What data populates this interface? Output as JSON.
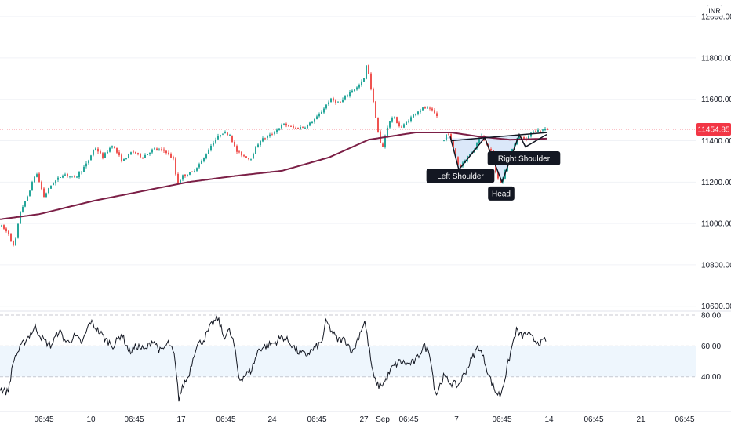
{
  "header": {
    "currency_label": "INR"
  },
  "colors": {
    "up": "#26a69a",
    "down": "#ef5350",
    "moving_average": "#7b1f46",
    "pattern_line": "#131722",
    "pattern_fill": "#cfe0f7",
    "rsi_line": "#131722",
    "rsi_band": "#eef6fd",
    "price_label_bg": "#f23645"
  },
  "chart_data": [
    {
      "type": "candlestick",
      "ylim": [
        10580,
        12080
      ],
      "ticks": [
        {
          "value": 12000,
          "label": "12000.00"
        },
        {
          "value": 11800,
          "label": "11800.00"
        },
        {
          "value": 11600,
          "label": "11600.00"
        },
        {
          "value": 11400,
          "label": "11400.00"
        },
        {
          "value": 11200,
          "label": "11200.00"
        },
        {
          "value": 11000,
          "label": "11000.00"
        },
        {
          "value": 10800,
          "label": "10800.00"
        },
        {
          "value": 10600,
          "label": "10600.00"
        }
      ],
      "last_price": {
        "value": 11454.85,
        "label": "11454.85"
      },
      "price_anchors": [
        [
          0,
          10990
        ],
        [
          10,
          10950
        ],
        [
          17,
          10880
        ],
        [
          25,
          11060
        ],
        [
          33,
          11120
        ],
        [
          45,
          11250
        ],
        [
          55,
          11130
        ],
        [
          65,
          11190
        ],
        [
          80,
          11240
        ],
        [
          95,
          11220
        ],
        [
          110,
          11290
        ],
        [
          120,
          11370
        ],
        [
          130,
          11320
        ],
        [
          142,
          11380
        ],
        [
          155,
          11300
        ],
        [
          168,
          11350
        ],
        [
          180,
          11320
        ],
        [
          195,
          11360
        ],
        [
          210,
          11350
        ],
        [
          220,
          11310
        ],
        [
          225,
          11190
        ],
        [
          232,
          11230
        ],
        [
          245,
          11250
        ],
        [
          258,
          11310
        ],
        [
          270,
          11390
        ],
        [
          282,
          11440
        ],
        [
          292,
          11430
        ],
        [
          300,
          11350
        ],
        [
          308,
          11330
        ],
        [
          318,
          11310
        ],
        [
          330,
          11400
        ],
        [
          345,
          11430
        ],
        [
          360,
          11480
        ],
        [
          375,
          11460
        ],
        [
          390,
          11470
        ],
        [
          405,
          11520
        ],
        [
          420,
          11600
        ],
        [
          432,
          11580
        ],
        [
          446,
          11640
        ],
        [
          456,
          11660
        ],
        [
          463,
          11700
        ],
        [
          467,
          11780
        ],
        [
          470,
          11700
        ],
        [
          476,
          11560
        ],
        [
          482,
          11420
        ],
        [
          486,
          11350
        ],
        [
          492,
          11460
        ],
        [
          500,
          11520
        ],
        [
          510,
          11460
        ],
        [
          520,
          11500
        ],
        [
          530,
          11540
        ],
        [
          540,
          11560
        ],
        [
          548,
          11550
        ],
        [
          556,
          11520
        ],
        [
          563,
          11380
        ],
        [
          570,
          11450
        ],
        [
          578,
          11350
        ],
        [
          584,
          11270
        ],
        [
          594,
          11320
        ],
        [
          602,
          11350
        ],
        [
          612,
          11430
        ],
        [
          620,
          11380
        ],
        [
          626,
          11340
        ],
        [
          632,
          11230
        ],
        [
          638,
          11190
        ],
        [
          645,
          11280
        ],
        [
          652,
          11360
        ],
        [
          662,
          11430
        ],
        [
          670,
          11400
        ],
        [
          676,
          11440
        ],
        [
          685,
          11450
        ],
        [
          697,
          11455
        ]
      ],
      "moving_average_anchors": [
        [
          0,
          11020
        ],
        [
          50,
          11045
        ],
        [
          120,
          11110
        ],
        [
          200,
          11170
        ],
        [
          240,
          11200
        ],
        [
          300,
          11230
        ],
        [
          360,
          11255
        ],
        [
          420,
          11320
        ],
        [
          470,
          11405
        ],
        [
          530,
          11440
        ],
        [
          575,
          11440
        ],
        [
          610,
          11420
        ],
        [
          650,
          11405
        ],
        [
          698,
          11410
        ]
      ],
      "pattern": {
        "neckline": [
          [
            575,
            11400
          ],
          [
            698,
            11440
          ]
        ],
        "regions": [
          [
            [
              566,
              11410
            ],
            [
              574,
              11420
            ],
            [
              585,
              11260
            ],
            [
              618,
              11415
            ]
          ],
          [
            [
              620,
              11420
            ],
            [
              640,
              11200
            ],
            [
              662,
              11430
            ]
          ]
        ],
        "zigzag": [
          [
            574,
            11420
          ],
          [
            585,
            11260
          ],
          [
            618,
            11415
          ],
          [
            640,
            11200
          ],
          [
            662,
            11430
          ],
          [
            670,
            11370
          ],
          [
            697,
            11430
          ]
        ],
        "labels": [
          {
            "text": "Left Shoulder",
            "x": 587,
            "price": 11230,
            "anchor_price": 11255
          },
          {
            "text": "Head",
            "x": 639,
            "price": 11145,
            "anchor_price": 11185
          },
          {
            "text": "Right Shoulder",
            "x": 668,
            "price": 11315,
            "anchor_price": 11360
          }
        ]
      }
    },
    {
      "type": "line",
      "ylim": [
        18,
        82
      ],
      "ticks": [
        {
          "value": 80,
          "label": "80.00"
        },
        {
          "value": 60,
          "label": "60.00"
        },
        {
          "value": 40,
          "label": "40.00"
        }
      ],
      "band": [
        40,
        60
      ],
      "anchors": [
        [
          0,
          32
        ],
        [
          10,
          30
        ],
        [
          18,
          52
        ],
        [
          30,
          62
        ],
        [
          45,
          72
        ],
        [
          55,
          64
        ],
        [
          65,
          60
        ],
        [
          75,
          70
        ],
        [
          85,
          62
        ],
        [
          95,
          66
        ],
        [
          105,
          62
        ],
        [
          115,
          76
        ],
        [
          125,
          70
        ],
        [
          135,
          64
        ],
        [
          145,
          60
        ],
        [
          155,
          68
        ],
        [
          165,
          56
        ],
        [
          175,
          60
        ],
        [
          185,
          57
        ],
        [
          195,
          64
        ],
        [
          205,
          56
        ],
        [
          215,
          62
        ],
        [
          222,
          54
        ],
        [
          228,
          26
        ],
        [
          235,
          36
        ],
        [
          240,
          40
        ],
        [
          250,
          60
        ],
        [
          260,
          64
        ],
        [
          270,
          74
        ],
        [
          278,
          78
        ],
        [
          285,
          66
        ],
        [
          292,
          70
        ],
        [
          298,
          62
        ],
        [
          305,
          38
        ],
        [
          310,
          40
        ],
        [
          320,
          44
        ],
        [
          330,
          58
        ],
        [
          340,
          60
        ],
        [
          350,
          62
        ],
        [
          360,
          66
        ],
        [
          370,
          62
        ],
        [
          380,
          56
        ],
        [
          390,
          54
        ],
        [
          400,
          58
        ],
        [
          410,
          62
        ],
        [
          416,
          76
        ],
        [
          422,
          70
        ],
        [
          430,
          64
        ],
        [
          440,
          64
        ],
        [
          450,
          56
        ],
        [
          460,
          70
        ],
        [
          465,
          76
        ],
        [
          470,
          60
        ],
        [
          476,
          40
        ],
        [
          482,
          34
        ],
        [
          490,
          36
        ],
        [
          500,
          46
        ],
        [
          510,
          50
        ],
        [
          520,
          48
        ],
        [
          530,
          50
        ],
        [
          540,
          60
        ],
        [
          548,
          56
        ],
        [
          553,
          36
        ],
        [
          556,
          28
        ],
        [
          565,
          40
        ],
        [
          575,
          36
        ],
        [
          584,
          34
        ],
        [
          594,
          44
        ],
        [
          602,
          52
        ],
        [
          610,
          60
        ],
        [
          618,
          50
        ],
        [
          624,
          40
        ],
        [
          632,
          30
        ],
        [
          638,
          28
        ],
        [
          645,
          42
        ],
        [
          652,
          58
        ],
        [
          658,
          70
        ],
        [
          665,
          66
        ],
        [
          672,
          68
        ],
        [
          680,
          64
        ],
        [
          690,
          62
        ],
        [
          697,
          64
        ]
      ]
    }
  ],
  "x_axis": {
    "labels": [
      {
        "text": "06:45",
        "x": 56
      },
      {
        "text": "10",
        "x": 116
      },
      {
        "text": "06:45",
        "x": 171
      },
      {
        "text": "17",
        "x": 231
      },
      {
        "text": "06:45",
        "x": 288
      },
      {
        "text": "24",
        "x": 347
      },
      {
        "text": "06:45",
        "x": 404
      },
      {
        "text": "27",
        "x": 464
      },
      {
        "text": "Sep",
        "x": 488
      },
      {
        "text": "06:45",
        "x": 521
      },
      {
        "text": "7",
        "x": 582
      },
      {
        "text": "06:45",
        "x": 640
      },
      {
        "text": "14",
        "x": 700
      },
      {
        "text": "06:45",
        "x": 757
      },
      {
        "text": "21",
        "x": 817
      },
      {
        "text": "06:45",
        "x": 873
      }
    ]
  }
}
